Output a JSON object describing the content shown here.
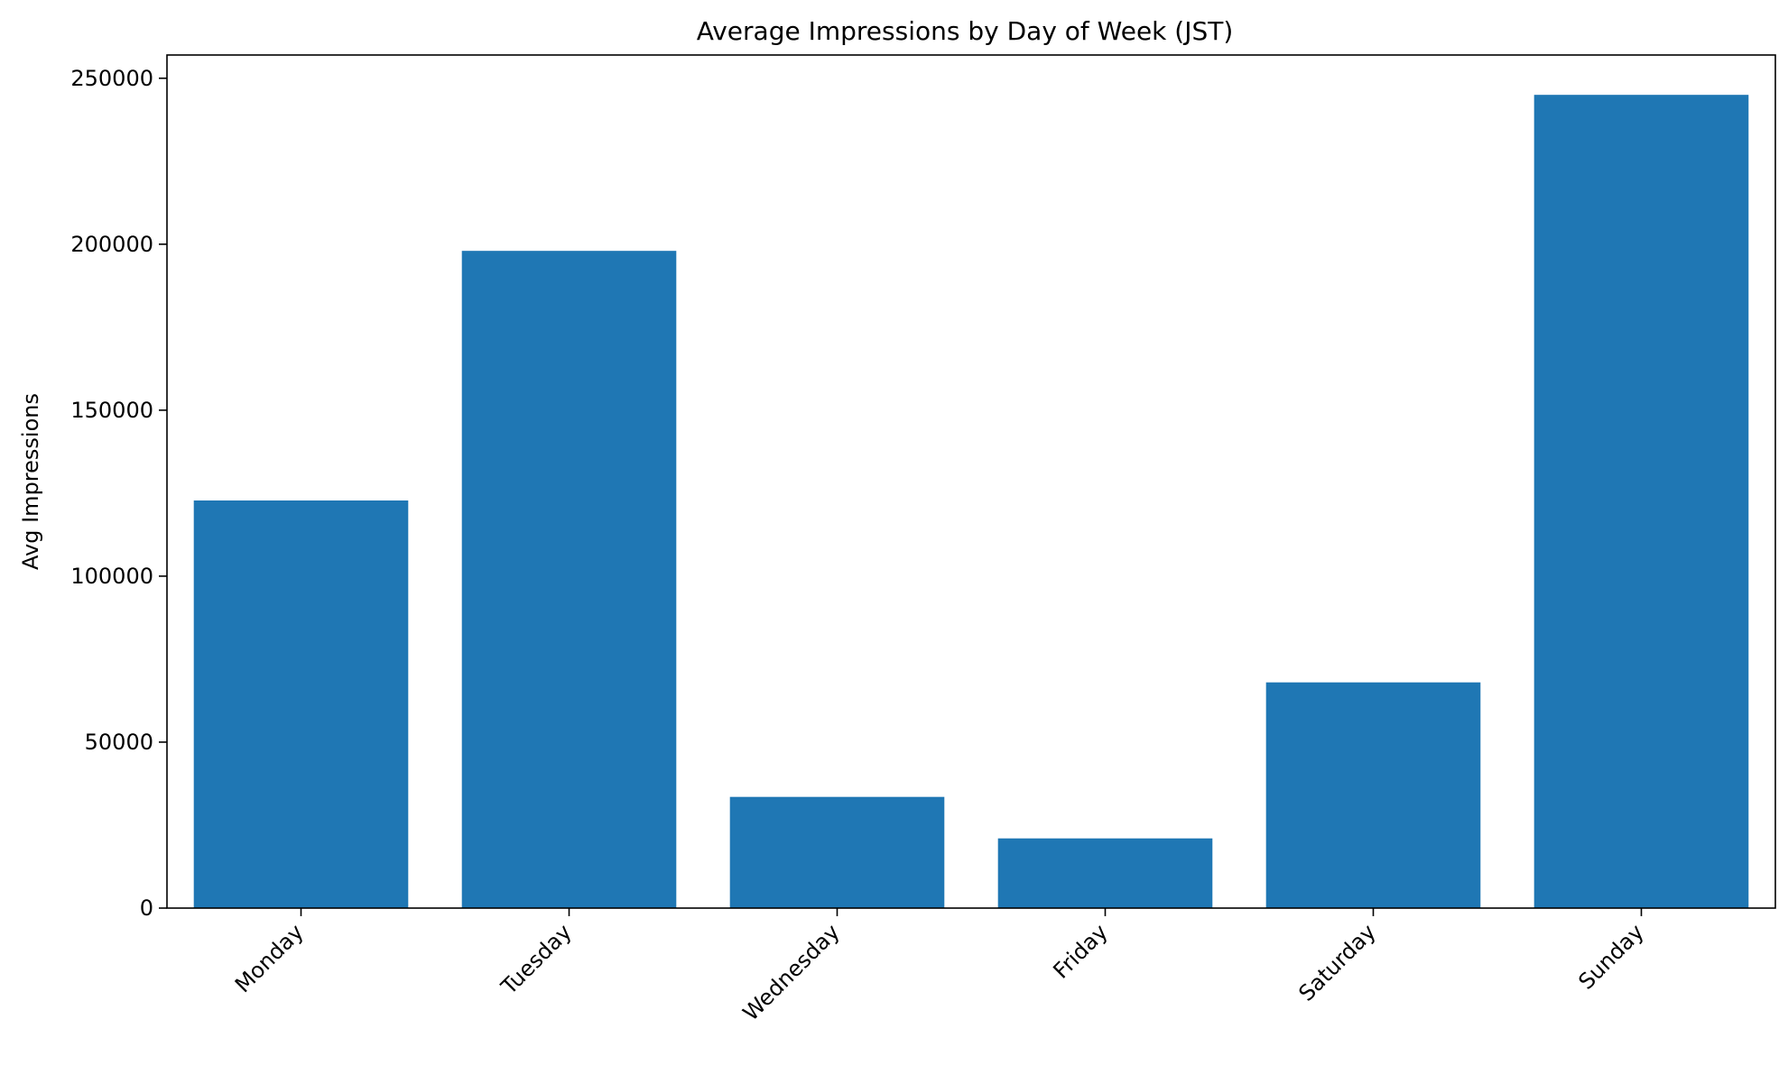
{
  "chart_data": {
    "type": "bar",
    "title": "Average Impressions by Day of Week (JST)",
    "xlabel": "",
    "ylabel": "Avg Impressions",
    "categories": [
      "Monday",
      "Tuesday",
      "Wednesday",
      "Friday",
      "Saturday",
      "Sunday"
    ],
    "values": [
      122800,
      198000,
      33500,
      21000,
      68000,
      245000
    ],
    "ylim": [
      0,
      257000
    ],
    "yticks": [
      0,
      50000,
      100000,
      150000,
      200000,
      250000
    ],
    "ytick_labels": [
      "0",
      "50000",
      "100000",
      "150000",
      "200000",
      "250000"
    ],
    "bar_color": "#1f77b4",
    "grid": false,
    "legend": "none",
    "xtick_rotation_deg": 45
  }
}
